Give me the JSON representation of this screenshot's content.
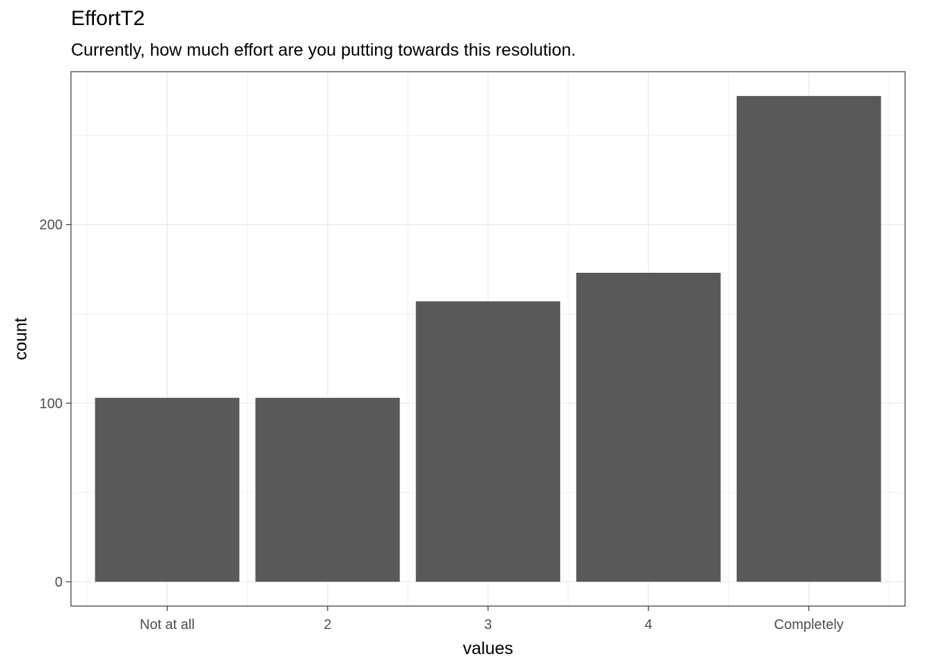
{
  "chart_data": {
    "type": "bar",
    "title": "EffortT2",
    "subtitle": "Currently, how much effort are you putting towards this resolution.",
    "xlabel": "values",
    "ylabel": "count",
    "categories": [
      "Not at all",
      "2",
      "3",
      "4",
      "Completely"
    ],
    "values": [
      103,
      103,
      157,
      173,
      272
    ],
    "ylim": [
      -13.6,
      285.6
    ],
    "yticks": [
      0,
      100,
      200
    ],
    "grid": true,
    "bar_color": "#595959",
    "grid_color": "#ebebeb",
    "panel_border_color": "#333333"
  }
}
